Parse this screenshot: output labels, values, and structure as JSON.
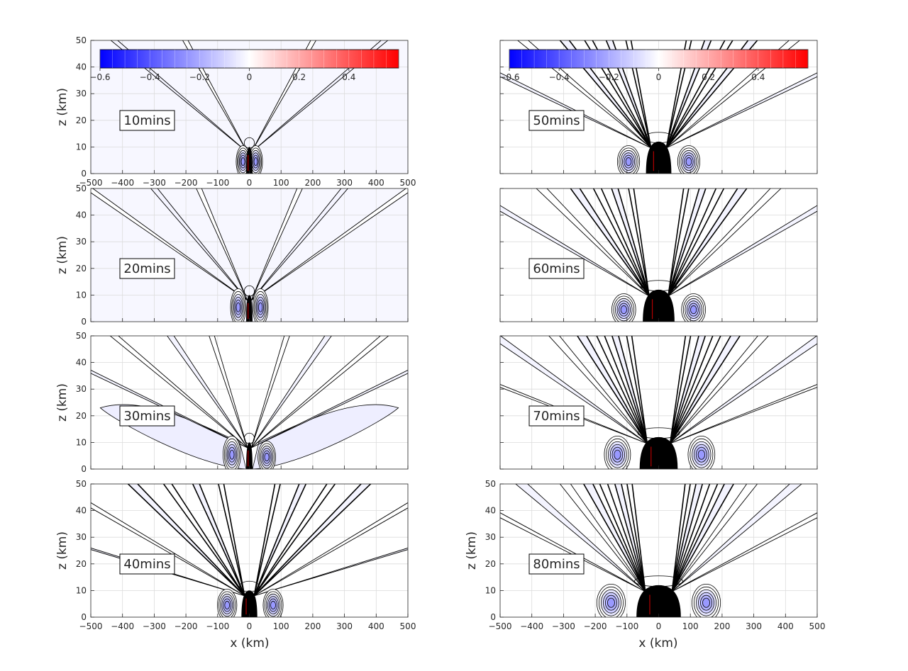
{
  "figure": {
    "xlabel": "x (km)",
    "ylabel": "z (km)",
    "colorbar_ticks": [
      "-0.6",
      "-0.4",
      "-0.2",
      "0",
      "0.2",
      "0.4"
    ]
  },
  "colors": {
    "cmap_negative": "#0000ff",
    "cmap_zero": "#ffffff",
    "cmap_positive": "#ff0000",
    "background_light_blue": "#eeeeff",
    "contour_line": "#000000",
    "grid": "#dcdcdc"
  },
  "chart_data": [
    {
      "type": "heatmap",
      "label": "10mins",
      "xlim": [
        -500,
        500
      ],
      "ylim": [
        0,
        50
      ],
      "xticks": [
        -500,
        -400,
        -300,
        -200,
        -100,
        0,
        100,
        200,
        300,
        400,
        500
      ],
      "yticks": [
        0,
        10,
        20,
        30,
        40,
        50
      ],
      "xticklabels": [
        "−500",
        "−400",
        "−300",
        "−200",
        "−100",
        "0",
        "100",
        "200",
        "300",
        "400",
        "500"
      ],
      "yticklabels": [
        "0",
        "10",
        "20",
        "30",
        "40",
        "50"
      ],
      "grid": true,
      "colorbar": true,
      "colorbar_range": [
        -0.6,
        0.6
      ],
      "background_value": -0.02,
      "core": {
        "center_x": 0,
        "halfwidth_km": 10,
        "top_z": 10
      },
      "side_lobes": [
        {
          "x": -20,
          "z": 5,
          "sign": "negative"
        },
        {
          "x": 20,
          "z": 5,
          "sign": "negative"
        }
      ],
      "beam_angles_deg": [
        25,
        45
      ]
    },
    {
      "type": "heatmap",
      "label": "20mins",
      "xlim": [
        -500,
        500
      ],
      "ylim": [
        0,
        50
      ],
      "xticks": [
        -500,
        -400,
        -300,
        -200,
        -100,
        0,
        100,
        200,
        300,
        400,
        500
      ],
      "yticks": [
        0,
        10,
        20,
        30,
        40,
        50
      ],
      "yticklabels": [
        "0",
        "10",
        "20",
        "30",
        "40",
        "50"
      ],
      "grid": true,
      "colorbar": false,
      "background_value": -0.02,
      "core": {
        "center_x": 0,
        "halfwidth_km": 10,
        "top_z": 10
      },
      "side_lobes": [
        {
          "x": -35,
          "z": 6,
          "sign": "negative"
        },
        {
          "x": 35,
          "z": 6,
          "sign": "negative"
        }
      ],
      "beam_angles_deg": [
        20,
        35,
        50
      ]
    },
    {
      "type": "heatmap",
      "label": "30mins",
      "xlim": [
        -500,
        500
      ],
      "ylim": [
        0,
        50
      ],
      "xticks": [
        -500,
        -400,
        -300,
        -200,
        -100,
        0,
        100,
        200,
        300,
        400,
        500
      ],
      "yticks": [
        0,
        10,
        20,
        30,
        40,
        50
      ],
      "yticklabels": [
        "0",
        "10",
        "20",
        "30",
        "40",
        "50"
      ],
      "grid": true,
      "colorbar": false,
      "background_value": 0,
      "core": {
        "center_x": 0,
        "halfwidth_km": 10,
        "top_z": 10
      },
      "side_lobes": [
        {
          "x": -55,
          "z": 6,
          "sign": "negative"
        },
        {
          "x": 55,
          "z": 5,
          "sign": "negative"
        }
      ],
      "wide_lobe_extent_km": 470,
      "beam_angles_deg": [
        15,
        30,
        45,
        60
      ]
    },
    {
      "type": "heatmap",
      "label": "40mins",
      "xlim": [
        -500,
        500
      ],
      "ylim": [
        0,
        50
      ],
      "xticks": [
        -500,
        -400,
        -300,
        -200,
        -100,
        0,
        100,
        200,
        300,
        400,
        500
      ],
      "yticks": [
        0,
        10,
        20,
        30,
        40,
        50
      ],
      "xticklabels": [
        "−500",
        "−400",
        "−300",
        "−200",
        "−100",
        "0",
        "100",
        "200",
        "300",
        "400",
        "500"
      ],
      "yticklabels": [
        "0",
        "10",
        "20",
        "30",
        "40",
        "50"
      ],
      "grid": true,
      "colorbar": false,
      "background_value": 0,
      "core": {
        "center_x": 0,
        "halfwidth_km": 25,
        "top_z": 10
      },
      "side_lobes": [
        {
          "x": -70,
          "z": 5,
          "sign": "negative"
        },
        {
          "x": 75,
          "z": 5,
          "sign": "negative"
        }
      ],
      "beam_angles_deg": [
        10,
        20,
        30,
        40,
        55,
        70
      ]
    },
    {
      "type": "heatmap",
      "label": "50mins",
      "xlim": [
        -500,
        500
      ],
      "ylim": [
        0,
        50
      ],
      "xticks": [
        -500,
        -400,
        -300,
        -200,
        -100,
        0,
        100,
        200,
        300,
        400,
        500
      ],
      "yticks": [
        0,
        10,
        20,
        30,
        40,
        50
      ],
      "grid": true,
      "colorbar": true,
      "colorbar_range": [
        -0.6,
        0.6
      ],
      "background_value": 0,
      "core": {
        "center_x": 0,
        "halfwidth_km": 40,
        "top_z": 12
      },
      "side_lobes": [
        {
          "x": -95,
          "z": 5,
          "sign": "negative"
        },
        {
          "x": 95,
          "z": 5,
          "sign": "negative"
        }
      ],
      "beam_angles_deg": [
        10,
        18,
        26,
        34,
        45,
        60
      ]
    },
    {
      "type": "heatmap",
      "label": "60mins",
      "xlim": [
        -500,
        500
      ],
      "ylim": [
        0,
        50
      ],
      "xticks": [
        -500,
        -400,
        -300,
        -200,
        -100,
        0,
        100,
        200,
        300,
        400,
        500
      ],
      "yticks": [
        0,
        10,
        20,
        30,
        40,
        50
      ],
      "grid": true,
      "colorbar": false,
      "background_value": 0,
      "core": {
        "center_x": 0,
        "halfwidth_km": 50,
        "top_z": 12
      },
      "side_lobes": [
        {
          "x": -110,
          "z": 5,
          "sign": "negative"
        },
        {
          "x": 110,
          "z": 5,
          "sign": "negative"
        }
      ],
      "beam_angles_deg": [
        8,
        15,
        22,
        30,
        40,
        55
      ]
    },
    {
      "type": "heatmap",
      "label": "70mins",
      "xlim": [
        -500,
        500
      ],
      "ylim": [
        0,
        50
      ],
      "xticks": [
        -500,
        -400,
        -300,
        -200,
        -100,
        0,
        100,
        200,
        300,
        400,
        500
      ],
      "yticks": [
        0,
        10,
        20,
        30,
        40,
        50
      ],
      "grid": true,
      "colorbar": false,
      "background_value": 0,
      "core": {
        "center_x": 0,
        "halfwidth_km": 60,
        "top_z": 12
      },
      "side_lobes": [
        {
          "x": -130,
          "z": 6,
          "sign": "negative"
        },
        {
          "x": 135,
          "z": 6,
          "sign": "negative"
        }
      ],
      "beam_angles_deg": [
        8,
        14,
        20,
        27,
        36,
        50,
        65
      ]
    },
    {
      "type": "heatmap",
      "label": "80mins",
      "xlim": [
        -500,
        500
      ],
      "ylim": [
        0,
        50
      ],
      "xticks": [
        -500,
        -400,
        -300,
        -200,
        -100,
        0,
        100,
        200,
        300,
        400,
        500
      ],
      "yticks": [
        0,
        10,
        20,
        30,
        40,
        50
      ],
      "xticklabels": [
        "−500",
        "−400",
        "−300",
        "−200",
        "−100",
        "0",
        "100",
        "200",
        "300",
        "400",
        "500"
      ],
      "yticklabels": [
        "0",
        "10",
        "20",
        "30",
        "40",
        "50"
      ],
      "grid": true,
      "colorbar": false,
      "background_value": 0,
      "core": {
        "center_x": 0,
        "halfwidth_km": 70,
        "top_z": 12
      },
      "side_lobes": [
        {
          "x": -150,
          "z": 6,
          "sign": "negative"
        },
        {
          "x": 150,
          "z": 6,
          "sign": "negative"
        }
      ],
      "beam_angles_deg": [
        7,
        12,
        18,
        24,
        32,
        44,
        58
      ]
    }
  ]
}
